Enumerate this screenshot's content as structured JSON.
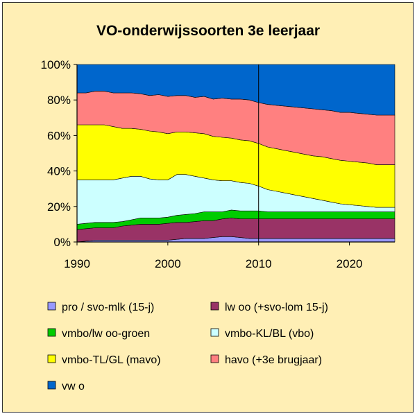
{
  "chart_data": {
    "type": "area",
    "stacked": "percent",
    "title": "VO-onderwijssoorten 3e leerjaar",
    "xlabel": "",
    "ylabel": "",
    "xlim": [
      1990,
      2025
    ],
    "ylim": [
      0,
      100
    ],
    "x_ticks": [
      "1990",
      "2000",
      "2010",
      "2020"
    ],
    "x_tick_values": [
      1990,
      2000,
      2010,
      2020
    ],
    "y_ticks": [
      "0%",
      "20%",
      "40%",
      "60%",
      "80%",
      "100%"
    ],
    "y_tick_values": [
      0,
      20,
      40,
      60,
      80,
      100
    ],
    "marker_line_x": 2010,
    "grid": false,
    "legend_position": "bottom",
    "x": [
      1990,
      1991,
      1992,
      1993,
      1994,
      1995,
      1996,
      1997,
      1998,
      1999,
      2000,
      2001,
      2002,
      2003,
      2004,
      2005,
      2006,
      2007,
      2008,
      2009,
      2010,
      2011,
      2012,
      2013,
      2014,
      2015,
      2016,
      2017,
      2018,
      2019,
      2020,
      2021,
      2022,
      2023,
      2024,
      2025
    ],
    "series": [
      {
        "name": "pro / svo-mlk (15-j)",
        "color": "#9999FF",
        "values": [
          0,
          0.5,
          1,
          1,
          1,
          1,
          1,
          1,
          1,
          1,
          1,
          1.5,
          2,
          2,
          2,
          2.5,
          3,
          3,
          2.5,
          2,
          2,
          2,
          2,
          2,
          2,
          2,
          2,
          2,
          2,
          2,
          2,
          2,
          2,
          2,
          2,
          2
        ]
      },
      {
        "name": "lw oo (+svo-lom 15-j)",
        "color": "#993366",
        "values": [
          7,
          7,
          7,
          7,
          7,
          8,
          8.5,
          9,
          9,
          9,
          9.5,
          9.5,
          9,
          9.5,
          10,
          9.5,
          10,
          10.5,
          10.5,
          11,
          11,
          11,
          11,
          11,
          11,
          11,
          11,
          11,
          11,
          11,
          11,
          11,
          11,
          11,
          11,
          11
        ]
      },
      {
        "name": "vmbo/lw oo-groen",
        "color": "#00CC00",
        "values": [
          3,
          3,
          3,
          3,
          3,
          2.5,
          3,
          3.5,
          3.5,
          3.5,
          3.5,
          4,
          4.5,
          4.5,
          5,
          5,
          4,
          4.5,
          4.5,
          4.5,
          4.5,
          4,
          4,
          4,
          4,
          4,
          4,
          4,
          4,
          4,
          4,
          4,
          4,
          4,
          4,
          4
        ]
      },
      {
        "name": "vmbo-KL/BL (vbo)",
        "color": "#CCFFFF",
        "values": [
          25,
          24.5,
          24,
          24,
          24,
          24.5,
          24.5,
          23.5,
          22,
          21.5,
          21,
          23,
          22.5,
          21,
          19,
          18,
          17.5,
          16.5,
          16,
          15.5,
          14,
          12.5,
          11.5,
          10.5,
          9.5,
          8.5,
          7.5,
          6.5,
          5.5,
          4.5,
          4,
          3.5,
          3,
          2.5,
          2.5,
          2.5
        ]
      },
      {
        "name": "vmbo-TL/GL (mavo)",
        "color": "#FFFF00",
        "values": [
          31,
          31,
          31,
          31,
          30,
          28,
          27,
          26.5,
          27,
          27,
          26,
          24,
          24,
          24.5,
          25,
          24.5,
          24.5,
          24,
          24,
          24,
          24,
          24,
          24,
          24,
          24,
          24,
          24,
          24.5,
          24.5,
          24.5,
          24.5,
          24.5,
          24.5,
          24,
          24,
          24
        ]
      },
      {
        "name": "havo (+3e brugjaar)",
        "color": "#FF8080",
        "values": [
          18,
          18,
          19,
          19,
          19,
          20,
          20,
          20,
          20,
          21,
          21,
          20.5,
          20.5,
          20,
          21,
          21,
          22,
          22,
          23,
          23,
          23,
          24,
          24.5,
          25,
          25.5,
          26,
          26.5,
          26.5,
          27,
          27,
          27.5,
          27.5,
          27.5,
          28,
          28,
          28
        ]
      },
      {
        "name": "vw o",
        "color": "#0066CC",
        "values": [
          16,
          16,
          15,
          15,
          16,
          16,
          16,
          16.5,
          17.5,
          17,
          18,
          17.5,
          17.5,
          18.5,
          18,
          19.5,
          19,
          19.5,
          19.5,
          20,
          21.5,
          22.5,
          23,
          23.5,
          24,
          24.5,
          25,
          25.5,
          26,
          27,
          26.5,
          27.5,
          28,
          28.5,
          28.5,
          28.5
        ]
      }
    ]
  }
}
